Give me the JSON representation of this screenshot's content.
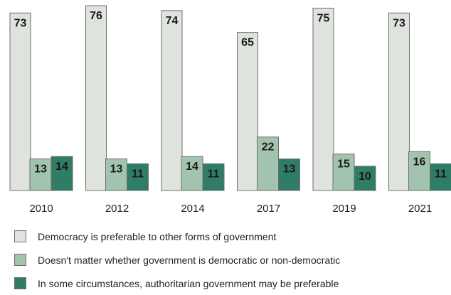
{
  "chart_data": {
    "type": "bar",
    "categories": [
      "2010",
      "2012",
      "2014",
      "2017",
      "2019",
      "2021"
    ],
    "series": [
      {
        "name": "Democracy is preferable to other forms of government",
        "values": [
          73,
          76,
          74,
          65,
          75,
          73
        ],
        "color": "#dfe3dd"
      },
      {
        "name": "Doesn't matter whether government is democratic or non-democratic",
        "values": [
          13,
          13,
          14,
          22,
          15,
          16
        ],
        "color": "#a2c3ad"
      },
      {
        "name": "In some circumstances, authoritarian government may be preferable",
        "values": [
          14,
          11,
          11,
          13,
          10,
          11
        ],
        "color": "#2f7d66"
      }
    ],
    "ylim": [
      0,
      76
    ],
    "grid": false,
    "legend_position": "bottom"
  }
}
